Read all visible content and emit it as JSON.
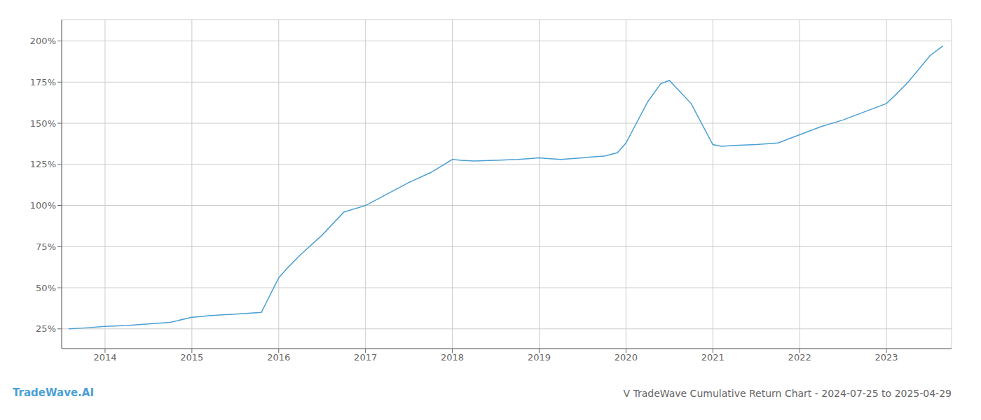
{
  "chart_data": {
    "type": "line",
    "title": "V TradeWave Cumulative Return Chart - 2024-07-25 to 2025-04-29",
    "annotations": [
      "TradeWave.AI"
    ],
    "x": [
      2013.58,
      2013.75,
      2014.0,
      2014.25,
      2014.5,
      2014.75,
      2015.0,
      2015.1,
      2015.2,
      2015.35,
      2015.5,
      2015.65,
      2015.8,
      2016.0,
      2016.1,
      2016.25,
      2016.5,
      2016.75,
      2017.0,
      2017.25,
      2017.5,
      2017.75,
      2018.0,
      2018.1,
      2018.25,
      2018.5,
      2018.75,
      2018.9,
      2019.0,
      2019.1,
      2019.25,
      2019.5,
      2019.6,
      2019.75,
      2019.9,
      2020.0,
      2020.1,
      2020.25,
      2020.4,
      2020.5,
      2020.75,
      2021.0,
      2021.1,
      2021.25,
      2021.5,
      2021.75,
      2022.0,
      2022.1,
      2022.25,
      2022.5,
      2022.75,
      2023.0,
      2023.1,
      2023.25,
      2023.5,
      2023.65
    ],
    "values": [
      25,
      25.5,
      26.5,
      27,
      28,
      29,
      32,
      32.5,
      33,
      33.5,
      34,
      34.5,
      35,
      56,
      62,
      70,
      82,
      96,
      100,
      107,
      114,
      120,
      128,
      127.5,
      127,
      127.5,
      128,
      128.5,
      129,
      128.5,
      128,
      129,
      129.5,
      130,
      132,
      138,
      148,
      163,
      174,
      176,
      162,
      137,
      136,
      136.5,
      137,
      138,
      143,
      145,
      148,
      152,
      157,
      162,
      167,
      175,
      191,
      197
    ],
    "color": "#4a9fd4",
    "xlim": [
      2013.5,
      2023.75
    ],
    "xticks": [
      2014,
      2015,
      2016,
      2017,
      2018,
      2019,
      2020,
      2021,
      2022,
      2023
    ],
    "ylim": [
      13,
      213
    ],
    "yticks": [
      {
        "value": 25,
        "label": "25%"
      },
      {
        "value": 50,
        "label": "50%"
      },
      {
        "value": 75,
        "label": "75%"
      },
      {
        "value": 100,
        "label": "100%"
      },
      {
        "value": 125,
        "label": "125%"
      },
      {
        "value": 150,
        "label": "150%"
      },
      {
        "value": 175,
        "label": "175%"
      },
      {
        "value": 200,
        "label": "200%"
      }
    ],
    "grid": true
  }
}
